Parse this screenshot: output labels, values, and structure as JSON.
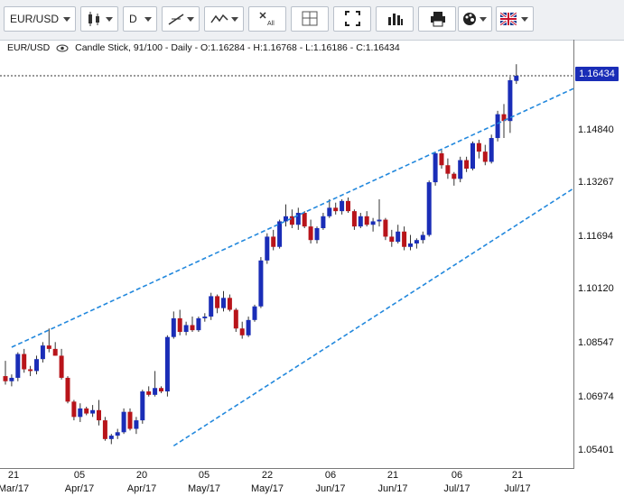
{
  "toolbar": {
    "symbol": "EUR/USD",
    "symbol_chevron_icon": "chevron-down-icon",
    "chart_type_icon": "candlestick-icon",
    "period": "D",
    "draw_tools_icon": "line-draw-icon",
    "indicators_icon": "indicator-icon",
    "remove_all_icon": "remove-all-icon",
    "crosshair_icon": "crosshair-icon",
    "fullscreen_icon": "fullscreen-icon",
    "volume_icon": "volume-bars-icon",
    "print_icon": "print-icon",
    "theme_icon": "palette-icon",
    "language_icon": "uk-flag-icon",
    "all_label": "All"
  },
  "legend": {
    "symbol": "EUR/USD",
    "description": "Candle Stick, 91/100 - Daily - O:1.16284 - H:1.16768 - L:1.16186 - C:1.16434"
  },
  "price_axis": {
    "labels": [
      "1.14840",
      "1.13267",
      "1.11694",
      "1.10120",
      "1.08547",
      "1.06974",
      "1.05401"
    ],
    "current_price": "1.16434"
  },
  "time_axis": {
    "ticks": [
      {
        "day": "21",
        "month": "Mar/17"
      },
      {
        "day": "05",
        "month": "Apr/17"
      },
      {
        "day": "20",
        "month": "Apr/17"
      },
      {
        "day": "05",
        "month": "May/17"
      },
      {
        "day": "22",
        "month": "May/17"
      },
      {
        "day": "06",
        "month": "Jun/17"
      },
      {
        "day": "21",
        "month": "Jun/17"
      },
      {
        "day": "06",
        "month": "Jul/17"
      },
      {
        "day": "21",
        "month": "Jul/17"
      }
    ]
  },
  "colors": {
    "up": "#1a2db7",
    "down": "#b8141a",
    "channel": "#2288dd",
    "price_tag": "#1a2db7"
  },
  "chart_data": {
    "type": "candlestick",
    "title": "",
    "ylim": [
      1.048,
      1.17
    ],
    "channel": {
      "upper": [
        [
          1,
          1.0845
        ],
        [
          100,
          1.168
        ]
      ],
      "lower": [
        [
          27,
          1.0555
        ],
        [
          105,
          1.1475
        ]
      ]
    },
    "candles": [
      [
        1.076,
        1.0805,
        1.0735,
        1.0745
      ],
      [
        1.0745,
        1.0765,
        1.073,
        1.0755
      ],
      [
        1.0755,
        1.083,
        1.0745,
        1.0825
      ],
      [
        1.0825,
        1.084,
        1.077,
        1.078
      ],
      [
        1.078,
        1.079,
        1.076,
        1.0775
      ],
      [
        1.0775,
        1.082,
        1.0765,
        1.081
      ],
      [
        1.081,
        1.086,
        1.08,
        1.085
      ],
      [
        1.085,
        1.09,
        1.083,
        1.084
      ],
      [
        1.084,
        1.086,
        1.082,
        1.082
      ],
      [
        1.082,
        1.084,
        1.075,
        1.0755
      ],
      [
        1.0755,
        1.076,
        1.068,
        1.0685
      ],
      [
        1.0685,
        1.069,
        1.063,
        1.064
      ],
      [
        1.064,
        1.068,
        1.0625,
        1.0665
      ],
      [
        1.0665,
        1.067,
        1.0645,
        1.065
      ],
      [
        1.065,
        1.0675,
        1.064,
        1.066
      ],
      [
        1.066,
        1.069,
        1.0615,
        1.063
      ],
      [
        1.063,
        1.064,
        1.057,
        1.0575
      ],
      [
        1.0575,
        1.059,
        1.056,
        1.0585
      ],
      [
        1.0585,
        1.0605,
        1.0575,
        1.0595
      ],
      [
        1.0595,
        1.0665,
        1.059,
        1.0655
      ],
      [
        1.0655,
        1.0665,
        1.06,
        1.0605
      ],
      [
        1.0605,
        1.064,
        1.059,
        1.063
      ],
      [
        1.063,
        1.072,
        1.062,
        1.0715
      ],
      [
        1.0715,
        1.073,
        1.07,
        1.0705
      ],
      [
        1.0705,
        1.0775,
        1.07,
        1.0725
      ],
      [
        1.0725,
        1.073,
        1.071,
        1.0715
      ],
      [
        1.0715,
        1.088,
        1.07,
        1.0875
      ],
      [
        1.0875,
        1.095,
        1.087,
        1.093
      ],
      [
        1.093,
        1.0955,
        1.088,
        1.089
      ],
      [
        1.089,
        1.092,
        1.088,
        1.091
      ],
      [
        1.091,
        1.0935,
        1.089,
        1.0895
      ],
      [
        1.0895,
        1.0935,
        1.089,
        1.093
      ],
      [
        1.093,
        1.0945,
        1.092,
        1.0935
      ],
      [
        1.0935,
        1.1005,
        1.0925,
        1.0995
      ],
      [
        1.0995,
        1.1,
        1.0945,
        1.096
      ],
      [
        1.096,
        1.101,
        1.095,
        1.099
      ],
      [
        1.099,
        1.1,
        1.095,
        1.0955
      ],
      [
        1.0955,
        1.096,
        1.089,
        1.09
      ],
      [
        1.09,
        1.092,
        1.087,
        1.088
      ],
      [
        1.088,
        1.0935,
        1.0875,
        1.0925
      ],
      [
        1.0925,
        1.097,
        1.092,
        1.0965
      ],
      [
        1.0965,
        1.111,
        1.096,
        1.11
      ],
      [
        1.11,
        1.118,
        1.109,
        1.117
      ],
      [
        1.117,
        1.119,
        1.113,
        1.114
      ],
      [
        1.114,
        1.122,
        1.1135,
        1.1215
      ],
      [
        1.1215,
        1.1265,
        1.12,
        1.123
      ],
      [
        1.123,
        1.125,
        1.1195,
        1.1205
      ],
      [
        1.1205,
        1.1255,
        1.119,
        1.124
      ],
      [
        1.124,
        1.1245,
        1.1195,
        1.12
      ],
      [
        1.12,
        1.122,
        1.115,
        1.116
      ],
      [
        1.116,
        1.12,
        1.115,
        1.1195
      ],
      [
        1.1195,
        1.124,
        1.119,
        1.123
      ],
      [
        1.123,
        1.128,
        1.1225,
        1.1255
      ],
      [
        1.1255,
        1.127,
        1.1235,
        1.1245
      ],
      [
        1.1245,
        1.128,
        1.1235,
        1.1275
      ],
      [
        1.1275,
        1.1285,
        1.124,
        1.1245
      ],
      [
        1.1245,
        1.125,
        1.119,
        1.12
      ],
      [
        1.12,
        1.124,
        1.1195,
        1.123
      ],
      [
        1.123,
        1.1245,
        1.12,
        1.1205
      ],
      [
        1.1205,
        1.1225,
        1.1185,
        1.1215
      ],
      [
        1.1215,
        1.128,
        1.12,
        1.122
      ],
      [
        1.122,
        1.1225,
        1.116,
        1.117
      ],
      [
        1.117,
        1.119,
        1.114,
        1.1155
      ],
      [
        1.1155,
        1.1205,
        1.115,
        1.1185
      ],
      [
        1.1185,
        1.12,
        1.113,
        1.114
      ],
      [
        1.114,
        1.1175,
        1.113,
        1.115
      ],
      [
        1.115,
        1.1165,
        1.1135,
        1.116
      ],
      [
        1.116,
        1.1185,
        1.115,
        1.1175
      ],
      [
        1.1175,
        1.1335,
        1.117,
        1.133
      ],
      [
        1.133,
        1.142,
        1.132,
        1.1415
      ],
      [
        1.1415,
        1.1425,
        1.137,
        1.138
      ],
      [
        1.138,
        1.14,
        1.134,
        1.1355
      ],
      [
        1.1355,
        1.136,
        1.132,
        1.134
      ],
      [
        1.134,
        1.1405,
        1.133,
        1.1395
      ],
      [
        1.1395,
        1.1405,
        1.136,
        1.137
      ],
      [
        1.137,
        1.145,
        1.1365,
        1.1445
      ],
      [
        1.1445,
        1.1455,
        1.14,
        1.142
      ],
      [
        1.142,
        1.144,
        1.138,
        1.139
      ],
      [
        1.139,
        1.147,
        1.1385,
        1.146
      ],
      [
        1.146,
        1.154,
        1.145,
        1.153
      ],
      [
        1.153,
        1.156,
        1.146,
        1.151
      ],
      [
        1.151,
        1.164,
        1.1475,
        1.163
      ],
      [
        1.1628,
        1.1677,
        1.1619,
        1.1643
      ]
    ]
  }
}
